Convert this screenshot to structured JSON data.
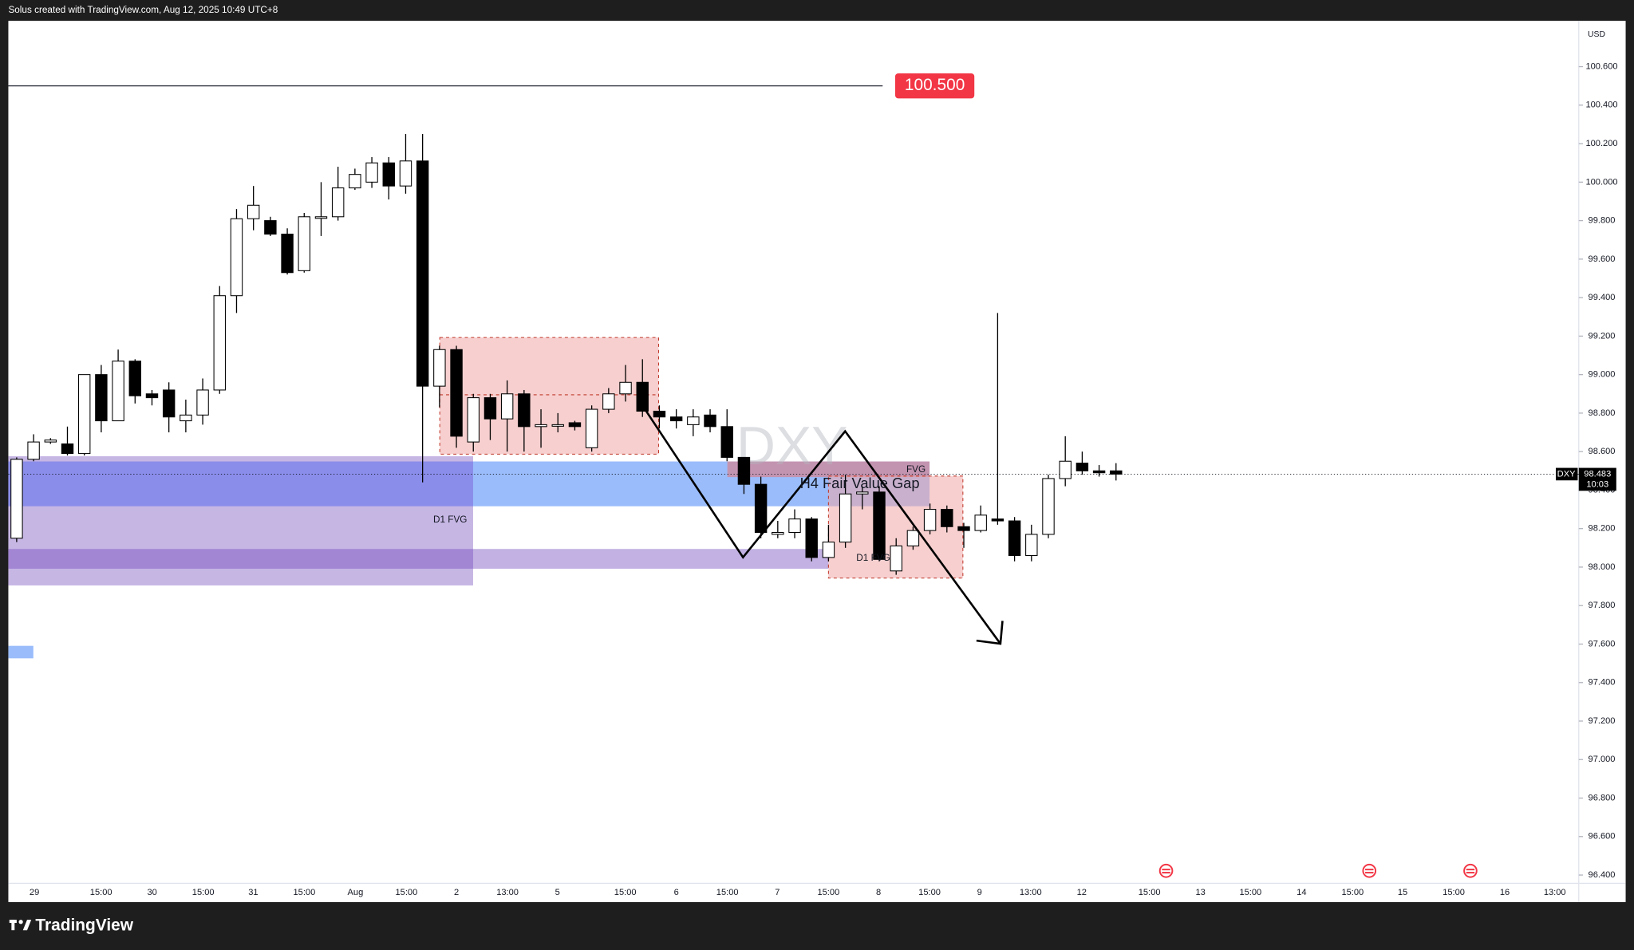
{
  "chart_data": {
    "type": "candlestick",
    "header": "Solus created with TradingView.com, Aug 12, 2025 10:49 UTC+8",
    "brand": "TradingView",
    "symbol": "DXY",
    "currency": "USD",
    "up_color": "#ffffff",
    "down_color": "#000000",
    "ylim": [
      96.357,
      100.838
    ],
    "yticks": [
      {
        "value": 96.4,
        "label": "96.400"
      },
      {
        "value": 96.6,
        "label": "96.600"
      },
      {
        "value": 96.8,
        "label": "96.800"
      },
      {
        "value": 97.0,
        "label": "97.000"
      },
      {
        "value": 97.2,
        "label": "97.200"
      },
      {
        "value": 97.4,
        "label": "97.400"
      },
      {
        "value": 97.6,
        "label": "97.600"
      },
      {
        "value": 97.8,
        "label": "97.800"
      },
      {
        "value": 98.0,
        "label": "98.000"
      },
      {
        "value": 98.2,
        "label": "98.200"
      },
      {
        "value": 98.4,
        "label": "98.400"
      },
      {
        "value": 98.6,
        "label": "98.600"
      },
      {
        "value": 98.8,
        "label": "98.800"
      },
      {
        "value": 99.0,
        "label": "99.000"
      },
      {
        "value": 99.2,
        "label": "99.200"
      },
      {
        "value": 99.4,
        "label": "99.400"
      },
      {
        "value": 99.6,
        "label": "99.600"
      },
      {
        "value": 99.8,
        "label": "99.800"
      },
      {
        "value": 100.0,
        "label": "100.000"
      },
      {
        "value": 100.2,
        "label": "100.200"
      },
      {
        "value": 100.4,
        "label": "100.400"
      },
      {
        "value": 100.6,
        "label": "100.600"
      }
    ],
    "time_labels": [
      "29",
      "15:00",
      "30",
      "15:00",
      "31",
      "15:00",
      "Aug",
      "15:00",
      "2",
      "13:00",
      "5",
      "15:00",
      "6",
      "15:00",
      "7",
      "15:00",
      "8",
      "15:00",
      "9",
      "13:00",
      "12",
      "15:00",
      "13",
      "15:00",
      "14",
      "15:00",
      "15",
      "15:00",
      "16",
      "13:00"
    ],
    "candles": {
      "open": [
        98.15,
        98.56,
        98.65,
        98.64,
        98.59,
        99.0,
        98.76,
        99.07,
        98.9,
        98.92,
        98.76,
        98.79,
        98.92,
        99.41,
        99.81,
        99.8,
        99.73,
        99.54,
        99.82,
        99.82,
        99.97,
        100.0,
        100.1,
        99.98,
        100.11,
        98.94,
        99.13,
        98.65,
        98.88,
        98.77,
        98.9,
        98.73,
        98.74,
        98.75,
        98.62,
        98.82,
        98.9,
        98.96,
        98.81,
        98.78,
        98.74,
        98.79,
        98.73,
        98.57,
        98.43,
        98.17,
        98.18,
        98.25,
        98.05,
        98.13,
        98.38,
        98.39,
        97.98,
        98.11,
        98.19,
        98.3,
        98.21,
        98.19,
        98.25,
        98.24,
        98.06,
        98.17,
        98.46,
        98.54,
        98.5,
        98.5
      ],
      "high": [
        98.57,
        98.69,
        98.67,
        98.73,
        99.0,
        99.05,
        99.13,
        99.08,
        98.92,
        98.96,
        98.87,
        98.98,
        99.46,
        99.86,
        99.98,
        99.82,
        99.76,
        99.84,
        100.0,
        100.08,
        100.07,
        100.13,
        100.13,
        100.25,
        100.25,
        99.15,
        99.15,
        98.9,
        98.9,
        98.97,
        98.92,
        98.82,
        98.8,
        98.76,
        98.84,
        98.93,
        99.05,
        99.08,
        98.84,
        98.82,
        98.82,
        98.82,
        98.82,
        98.57,
        98.47,
        98.24,
        98.3,
        98.26,
        98.22,
        98.48,
        98.42,
        98.42,
        98.15,
        98.21,
        98.33,
        98.32,
        98.23,
        98.32,
        99.32,
        98.26,
        98.22,
        98.48,
        98.68,
        98.6,
        98.53,
        98.54
      ],
      "low": [
        98.13,
        98.55,
        98.64,
        98.58,
        98.58,
        98.7,
        98.76,
        98.85,
        98.84,
        98.7,
        98.7,
        98.74,
        98.9,
        99.32,
        99.75,
        99.72,
        99.52,
        99.53,
        99.72,
        99.8,
        99.96,
        99.97,
        99.91,
        99.94,
        98.44,
        98.83,
        98.62,
        98.6,
        98.66,
        98.6,
        98.6,
        98.62,
        98.7,
        98.71,
        98.6,
        98.8,
        98.86,
        98.78,
        98.72,
        98.72,
        98.68,
        98.7,
        98.55,
        98.38,
        98.15,
        98.15,
        98.15,
        98.03,
        98.03,
        98.1,
        98.3,
        98.03,
        97.96,
        98.09,
        98.17,
        98.18,
        98.1,
        98.18,
        98.22,
        98.03,
        98.03,
        98.15,
        98.42,
        98.48,
        98.47,
        98.45
      ],
      "close": [
        98.56,
        98.65,
        98.66,
        98.59,
        99.0,
        98.76,
        99.07,
        98.89,
        98.88,
        98.78,
        98.79,
        98.92,
        99.41,
        99.81,
        99.88,
        99.73,
        99.53,
        99.82,
        99.82,
        99.97,
        100.04,
        100.1,
        99.98,
        100.11,
        98.94,
        99.13,
        98.68,
        98.88,
        98.77,
        98.9,
        98.73,
        98.74,
        98.74,
        98.73,
        98.82,
        98.9,
        98.96,
        98.81,
        98.78,
        98.76,
        98.78,
        98.73,
        98.57,
        98.43,
        98.18,
        98.18,
        98.25,
        98.05,
        98.13,
        98.38,
        98.39,
        98.04,
        98.11,
        98.19,
        98.3,
        98.21,
        98.19,
        98.27,
        98.24,
        98.06,
        98.17,
        98.46,
        98.55,
        98.5,
        98.49,
        98.483
      ]
    },
    "price_line": {
      "value": 100.5,
      "label": "100.500",
      "color": "#f23645"
    },
    "last_price": {
      "value": 98.483,
      "label": "98.483",
      "countdown": "10:03"
    },
    "annotations": [
      "D1 FVG",
      "H4 Fair Value Gap",
      "FVG",
      "D1 FVG"
    ],
    "watermark": "DXY"
  }
}
